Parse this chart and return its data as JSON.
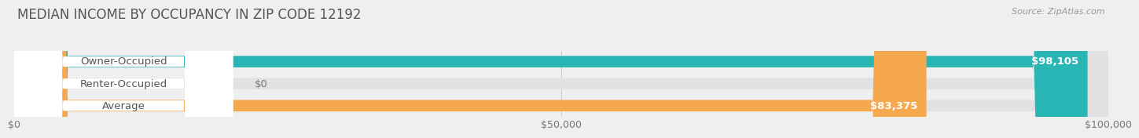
{
  "title": "MEDIAN INCOME BY OCCUPANCY IN ZIP CODE 12192",
  "source": "Source: ZipAtlas.com",
  "categories": [
    "Owner-Occupied",
    "Renter-Occupied",
    "Average"
  ],
  "values": [
    98105,
    0,
    83375
  ],
  "bar_colors": [
    "#2ab5b5",
    "#c8a8d8",
    "#f5a84e"
  ],
  "bar_labels": [
    "$98,105",
    "$0",
    "$83,375"
  ],
  "xlim": [
    0,
    100000
  ],
  "xticks": [
    0,
    50000,
    100000
  ],
  "xticklabels": [
    "$0",
    "$50,000",
    "$100,000"
  ],
  "background_color": "#efefef",
  "bar_bg_color": "#e2e2e2",
  "label_bg_color": "#ffffff",
  "bar_height": 0.52,
  "title_fontsize": 12,
  "label_fontsize": 9.5,
  "tick_fontsize": 9,
  "source_fontsize": 8
}
